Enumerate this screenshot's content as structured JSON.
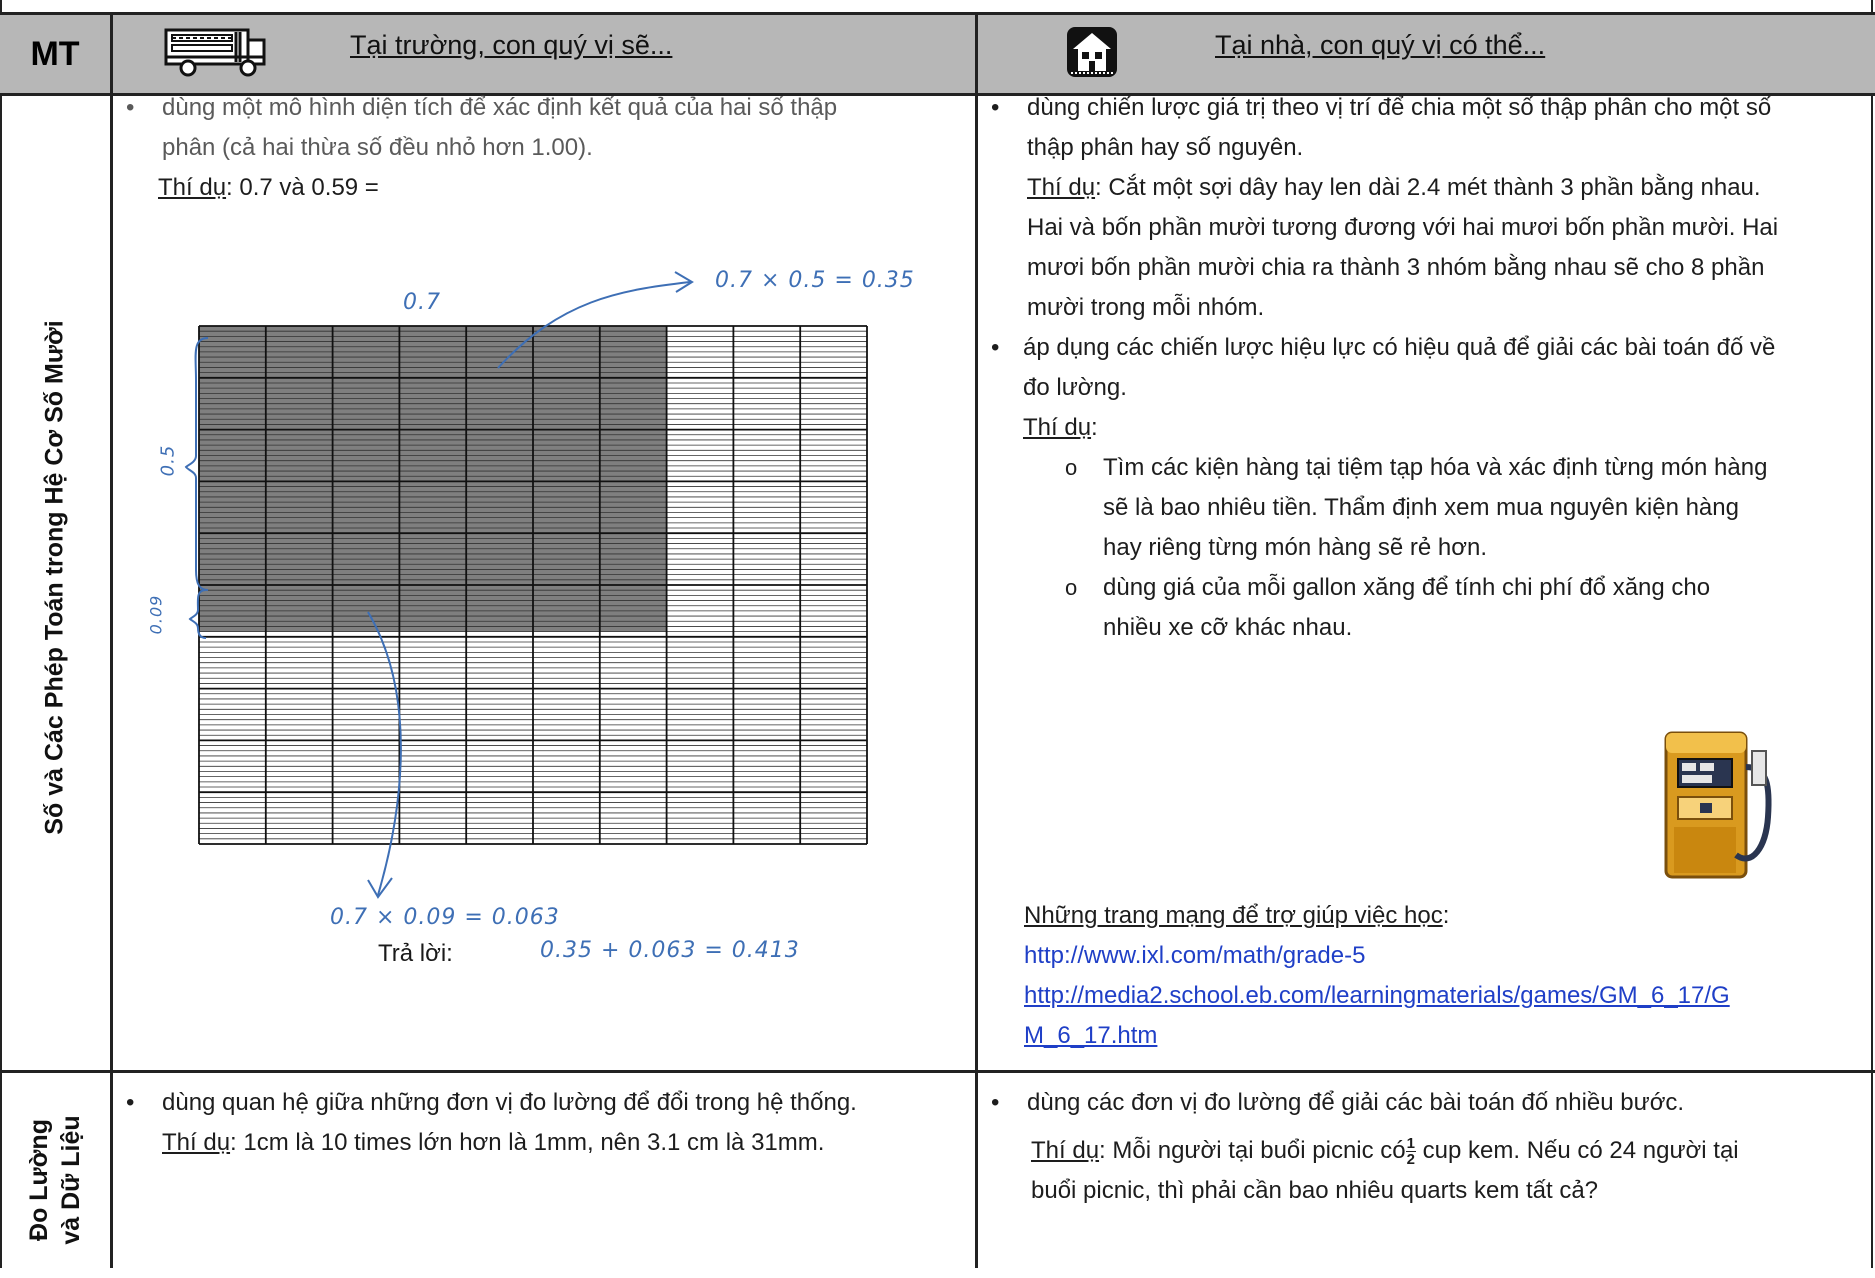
{
  "header": {
    "mt_label": "MT",
    "school_heading": "Tại trường, con quý vị sẽ...",
    "home_heading": "Tại nhà, con quý vị có thể...",
    "bus_icon": "school-bus-icon",
    "house_icon": "house-icon"
  },
  "row1": {
    "category": "Số và Các Phép Toán trong Hệ Cơ Số Mười",
    "school": {
      "bullet_line1": "dùng một mô hình diện tích để xác định kết quả của hai số thập",
      "bullet_line2": "phân (cả hai thừa số đều nhỏ hơn 1.00).",
      "example_label": "Thí dụ",
      "example_text": ":  0.7 và 0.59 =",
      "hand_top_left": "0.7",
      "hand_top_right": "0.7 × 0.5 = 0.35",
      "hand_side_a": "0.5",
      "hand_side_b": "0.09",
      "hand_bottom": "0.7 × 0.09  = 0.063",
      "answer_label": "Trả lời:",
      "hand_answer": "0.35 + 0.063 = 0.413"
    },
    "home": {
      "b1_line1": "dùng chiến lược giá trị theo vị trí để chia một số thập phân cho một số",
      "b1_line2": "thập phân hay số nguyên.",
      "b1_example_label": "Thí dụ",
      "b1_ex_line1": ": Cắt một sợi dây hay len dài 2.4 mét thành 3 phần bằng nhau.",
      "b1_ex_line2": "Hai và bốn phần mười tương đương với hai mươi bốn phần mười.  Hai",
      "b1_ex_line3": "mươi bốn phần mười chia ra thành 3 nhóm bằng nhau sẽ cho 8 phần",
      "b1_ex_line4": "mười trong mỗi nhóm.",
      "b2_line1": "áp dụng các chiến lược hiệu lực có hiệu quả để giải các bài toán đố về",
      "b2_line2": "đo lường.",
      "b2_example_label": "Thí dụ",
      "b2_colon": ":",
      "sub1_line1": "Tìm các kiện hàng tại tiệm tạp hóa và xác định từng món hàng",
      "sub1_line2": "sẽ là bao nhiêu tiền.  Thẩm định xem mua nguyên kiện hàng",
      "sub1_line3": "hay riêng từng món hàng sẽ rẻ hơn.",
      "sub2_line1": "dùng giá của mỗi gallon xăng để tính chi phí đổ xăng cho",
      "sub2_line2": "nhiều xe cỡ khác nhau.",
      "gas_icon": "gas-pump-icon",
      "websites_label": "Những trang mạng để trợ giúp việc học",
      "websites_colon": ":",
      "link1": "http://www.ixl.com/math/grade-5",
      "link2_line1": "http://media2.school.eb.com/learningmaterials/games/GM_6_17/G",
      "link2_line2": "M_6_17.htm"
    }
  },
  "row2": {
    "category_line1": "Đo Lường",
    "category_line2": "và Dữ Liệu",
    "school": {
      "bullet": "dùng quan hệ giữa những đơn vị đo lường để đổi trong hệ thống.",
      "example_label": "Thí dụ",
      "example_text": ":  1cm là 10 times lớn hơn là 1mm, nên 3.1 cm là 31mm."
    },
    "home": {
      "bullet": "dùng các đơn vị đo lường để giải các bài toán đố nhiều bước.",
      "example_label": "Thí dụ",
      "ex_pre": ": Mỗi người tại buổi picnic có",
      "frac_num": "1",
      "frac_den": "2",
      "ex_post": " cup kem.  Nếu có 24 người tại",
      "ex_line2": "buổi picnic, thì phải cần bao nhiêu quarts kem tất cả?"
    }
  },
  "chart_data": {
    "type": "area-model",
    "grid_columns": 10,
    "grid_rows": 10,
    "shaded_columns": 7,
    "shaded_rows_full": 5,
    "shaded_rows_partial_hundredths": 9,
    "factor_a": 0.7,
    "factor_b": 0.59,
    "product": 0.413
  },
  "colors": {
    "header_bg": "#b7b7b7",
    "border": "#222222",
    "link": "#1f3fc7",
    "handwriting": "#3e6fb5",
    "shade": "#7f7f7f"
  }
}
